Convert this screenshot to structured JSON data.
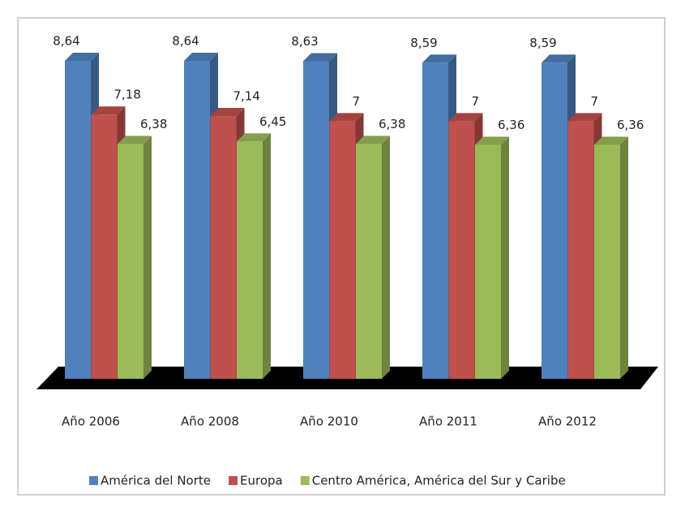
{
  "chart_data": {
    "type": "bar3d",
    "categories": [
      "Año 2006",
      "Año 2008",
      "Año 2010",
      "Año 2011",
      "Año 2012"
    ],
    "series": [
      {
        "name": "América del Norte",
        "color": "#4f81bd",
        "values": [
          8.64,
          8.64,
          8.63,
          8.59,
          8.59
        ],
        "value_labels": [
          "8,64",
          "8,64",
          "8,63",
          "8,59",
          "8,59"
        ]
      },
      {
        "name": "Europa",
        "color": "#c0504d",
        "values": [
          7.18,
          7.14,
          7,
          7,
          7
        ],
        "value_labels": [
          "7,18",
          "7,14",
          "7",
          "7",
          "7"
        ]
      },
      {
        "name": "Centro América, América del Sur y Caribe",
        "color": "#9bbb59",
        "values": [
          6.38,
          6.45,
          6.38,
          6.36,
          6.36
        ],
        "value_labels": [
          "6,38",
          "6,45",
          "6,38",
          "6,36",
          "6,36"
        ]
      }
    ],
    "legend": "bottom"
  }
}
